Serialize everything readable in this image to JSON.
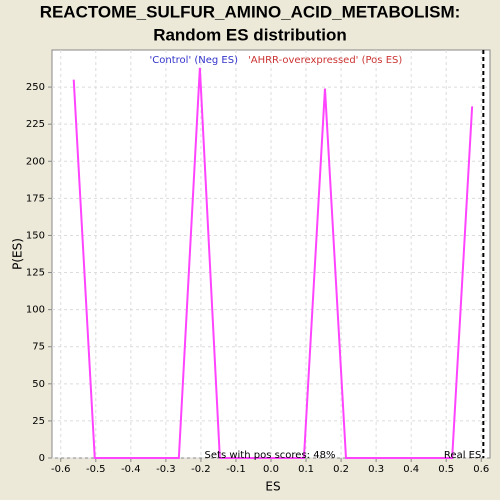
{
  "chart_data": {
    "type": "line",
    "title": "REACTOME_SULFUR_AMINO_ACID_METABOLISM:",
    "subtitle": "Random ES distribution",
    "x_label": "ES",
    "y_label": "P(ES)",
    "x": [
      -0.563,
      -0.503,
      -0.263,
      -0.203,
      -0.146,
      0.094,
      0.154,
      0.214,
      0.517,
      0.574
    ],
    "series": [
      {
        "name": "P(ES)",
        "color": "#ff44ff",
        "values": [
          255,
          0,
          0,
          263,
          0,
          0,
          249,
          0,
          0,
          237
        ]
      }
    ],
    "legend": [
      {
        "label": "'Control' (Neg ES)",
        "color": "#3333cc"
      },
      {
        "label": "'AHRR-overexpressed' (Pos ES)",
        "color": "#cc3333"
      }
    ],
    "real_es": 0.606,
    "real_es_label": "Real ES",
    "annotation": "Sets with pos scores: 48%",
    "xlim": [
      -0.625,
      0.625
    ],
    "xticks": [
      -0.6,
      -0.5,
      -0.4,
      -0.3,
      -0.2,
      -0.1,
      {
        "value": 0,
        "label": "0.0"
      },
      0.1,
      0.2,
      0.3,
      0.4,
      0.5,
      0.6
    ],
    "ylim": [
      0,
      275
    ],
    "yticks": [
      0,
      25,
      50,
      75,
      100,
      125,
      150,
      175,
      200,
      225,
      250
    ],
    "grid": true
  }
}
